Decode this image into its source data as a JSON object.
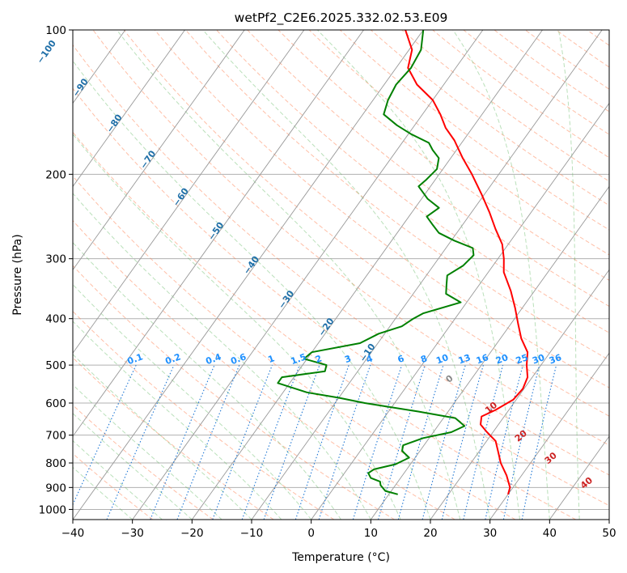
{
  "chart_data": {
    "type": "line",
    "diagram": "skew-t log-p",
    "title": "wetPf2_C2E6.2025.332.02.53.E09",
    "xlabel": "Temperature (°C)",
    "ylabel": "Pressure (hPa)",
    "xlim": [
      -40,
      50
    ],
    "ylim": [
      1050,
      100
    ],
    "y_scale": "log",
    "x_ticks": [
      -40,
      -30,
      -20,
      -10,
      0,
      10,
      20,
      30,
      40,
      50
    ],
    "y_ticks": [
      100,
      200,
      300,
      400,
      500,
      600,
      700,
      800,
      900,
      1000
    ],
    "grid": "horizontal at pressure ticks",
    "colors": {
      "temperature": "#ff0000",
      "dewpoint": "#008000",
      "isotherms": "#999999",
      "dry_adiabats": "#ff7f50",
      "moist_adiabats": "#66bb66",
      "mixing_ratio": "#1f77d4",
      "mixing_labels": "#1e90ff",
      "isotherm_labels": "#1f6fa8",
      "moist_labels": "#cc2222",
      "outer_arcs": "#d2b48c"
    },
    "series": [
      {
        "role": "temperature",
        "points": [
          [
            930,
            30.0
          ],
          [
            900,
            29.5
          ],
          [
            850,
            27.5
          ],
          [
            800,
            25.0
          ],
          [
            760,
            23.3
          ],
          [
            720,
            21.5
          ],
          [
            690,
            19.0
          ],
          [
            665,
            17.0
          ],
          [
            640,
            16.2
          ],
          [
            620,
            17.8
          ],
          [
            590,
            19.5
          ],
          [
            560,
            19.8
          ],
          [
            530,
            19.2
          ],
          [
            500,
            17.6
          ],
          [
            470,
            16.2
          ],
          [
            440,
            13.5
          ],
          [
            410,
            11.2
          ],
          [
            380,
            8.8
          ],
          [
            350,
            6.0
          ],
          [
            320,
            2.6
          ],
          [
            300,
            1.0
          ],
          [
            280,
            -1.0
          ],
          [
            260,
            -4.0
          ],
          [
            240,
            -7.0
          ],
          [
            220,
            -10.5
          ],
          [
            200,
            -14.5
          ],
          [
            185,
            -18.0
          ],
          [
            170,
            -21.5
          ],
          [
            160,
            -24.5
          ],
          [
            150,
            -27.0
          ],
          [
            140,
            -30.0
          ],
          [
            130,
            -34.5
          ],
          [
            120,
            -38.0
          ],
          [
            110,
            -39.5
          ],
          [
            100,
            -43.0
          ]
        ]
      },
      {
        "role": "dewpoint",
        "points": [
          [
            930,
            11.5
          ],
          [
            915,
            9.0
          ],
          [
            890,
            7.5
          ],
          [
            875,
            7.0
          ],
          [
            860,
            5.0
          ],
          [
            840,
            4.0
          ],
          [
            825,
            4.5
          ],
          [
            805,
            7.5
          ],
          [
            780,
            9.0
          ],
          [
            755,
            7.0
          ],
          [
            735,
            6.5
          ],
          [
            710,
            9.0
          ],
          [
            690,
            13.0
          ],
          [
            670,
            14.5
          ],
          [
            645,
            12.0
          ],
          [
            625,
            5.0
          ],
          [
            600,
            -5.0
          ],
          [
            585,
            -10.0
          ],
          [
            570,
            -16.0
          ],
          [
            545,
            -22.0
          ],
          [
            530,
            -22.0
          ],
          [
            515,
            -15.5
          ],
          [
            500,
            -16.0
          ],
          [
            485,
            -20.5
          ],
          [
            470,
            -20.0
          ],
          [
            450,
            -13.0
          ],
          [
            430,
            -11.0
          ],
          [
            415,
            -8.0
          ],
          [
            400,
            -7.0
          ],
          [
            390,
            -6.0
          ],
          [
            370,
            -1.0
          ],
          [
            355,
            -4.5
          ],
          [
            340,
            -5.5
          ],
          [
            325,
            -6.5
          ],
          [
            310,
            -5.0
          ],
          [
            295,
            -4.5
          ],
          [
            285,
            -5.5
          ],
          [
            275,
            -9.5
          ],
          [
            265,
            -13.0
          ],
          [
            255,
            -15.0
          ],
          [
            245,
            -17.0
          ],
          [
            235,
            -16.0
          ],
          [
            225,
            -19.0
          ],
          [
            212,
            -22.0
          ],
          [
            205,
            -21.5
          ],
          [
            195,
            -21.0
          ],
          [
            185,
            -22.0
          ],
          [
            178,
            -24.0
          ],
          [
            172,
            -25.5
          ],
          [
            165,
            -29.5
          ],
          [
            158,
            -33.0
          ],
          [
            150,
            -36.5
          ],
          [
            140,
            -37.5
          ],
          [
            130,
            -38.0
          ],
          [
            120,
            -37.5
          ],
          [
            110,
            -38.0
          ],
          [
            100,
            -40.0
          ]
        ]
      }
    ],
    "mixing_ratio_labels": [
      "0.1",
      "0.2",
      "0.4",
      "0.6",
      "1",
      "1.5",
      "2",
      "3",
      "4",
      "6",
      "8",
      "10",
      "13",
      "16",
      "20",
      "25",
      "30",
      "36"
    ],
    "mixing_ratio_values": [
      0.1,
      0.2,
      0.4,
      0.6,
      1,
      1.5,
      2,
      3,
      4,
      6,
      8,
      10,
      13,
      16,
      20,
      25,
      30,
      36
    ],
    "isotherm_labels": [
      "-100",
      "-90",
      "-80",
      "-70",
      "-60",
      "-50",
      "-40",
      "-30",
      "-20",
      "-10"
    ],
    "isotherm_values": [
      -100,
      -90,
      -80,
      -70,
      -60,
      -50,
      -40,
      -30,
      -20,
      -10
    ],
    "moist_adiabat_labels": [
      "0",
      "10",
      "20",
      "30",
      "40"
    ],
    "moist_adiabat_values": [
      0,
      10,
      20,
      30,
      40
    ]
  }
}
